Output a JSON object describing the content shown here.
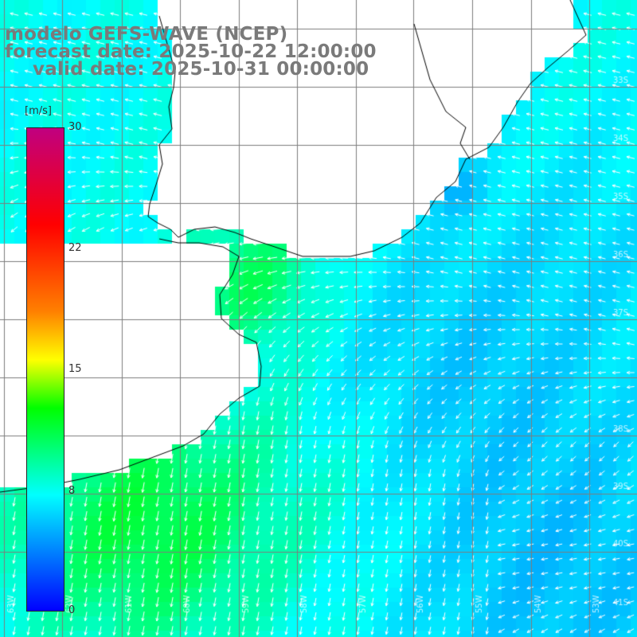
{
  "title": {
    "model": "modelo GEFS-WAVE (NCEP)",
    "forecast": "forecast date: 2025-10-22 12:00:00",
    "valid": "valid date: 2025-10-31 00:00:00"
  },
  "colorbar": {
    "units": "[m/s]",
    "ticks": [
      "30",
      "22",
      "15",
      "8",
      "0"
    ],
    "tick_values": [
      30,
      22,
      15,
      8,
      0
    ],
    "range": [
      0,
      30
    ],
    "colors": [
      "#0000ff",
      "#00b4ff",
      "#00ffff",
      "#00ff00",
      "#ffff00",
      "#ff8000",
      "#ff0000",
      "#c00080"
    ]
  },
  "map": {
    "variable": "wind speed and direction",
    "land_color": "#ffffff",
    "coast_color": "#000000",
    "grid_color": "#777777",
    "lat_labels": [
      "33S",
      "34S",
      "35S",
      "36S",
      "37S",
      "38S",
      "39S",
      "40S",
      "41S"
    ],
    "lon_labels": [
      "63W",
      "62W",
      "61W",
      "60W",
      "59W",
      "58W",
      "57W",
      "56W",
      "55W",
      "54W",
      "53W"
    ]
  }
}
